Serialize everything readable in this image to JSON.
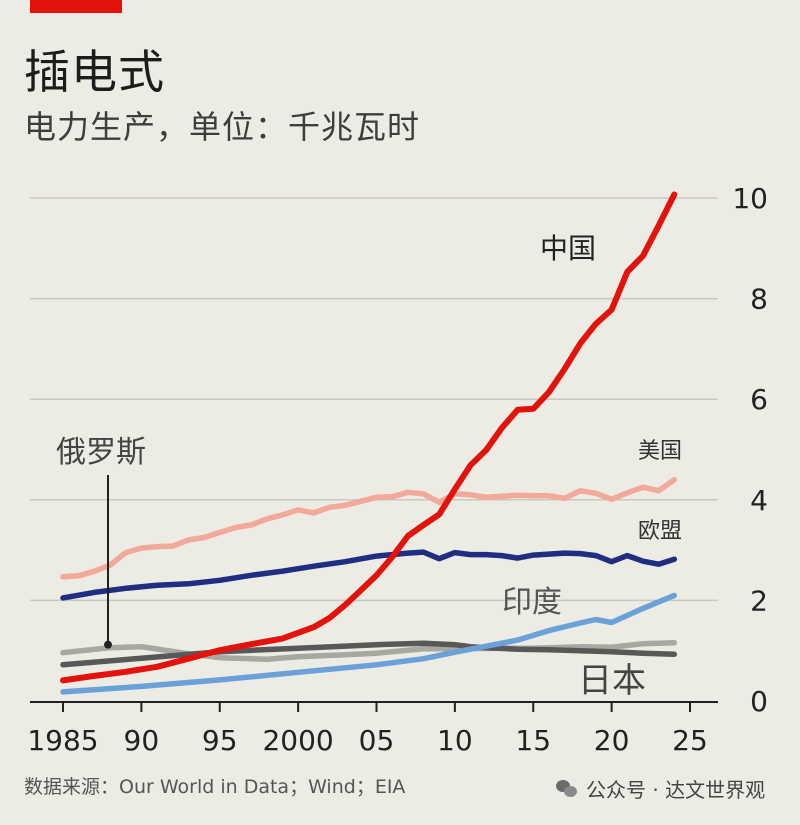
{
  "header": {
    "title": "插电式",
    "subtitle": "电力生产，单位：千兆瓦时"
  },
  "footer": {
    "source": "数据来源：Our World in Data；Wind；EIA",
    "watermark": "公众号 · 达文世界观"
  },
  "colors": {
    "accent": "#e3120b",
    "china": "#e3120b",
    "usa": "#f2a99a",
    "eu": "#1f2e82",
    "india": "#6aa2d8",
    "japan": "#585858",
    "russia": "#a8a8a2",
    "grid": "#c9c8c0"
  },
  "chart_data": {
    "type": "line",
    "title": "插电式",
    "subtitle": "电力生产，单位：千兆瓦时",
    "xlim": [
      1985,
      2025
    ],
    "ylim": [
      0,
      10
    ],
    "y_ticks": [
      0,
      2,
      4,
      6,
      8,
      10
    ],
    "y_tick_labels": [
      "0",
      "2",
      "4",
      "6",
      "8",
      "10"
    ],
    "x_ticks": [
      1985,
      1990,
      1995,
      2000,
      2005,
      2010,
      2015,
      2020,
      2025
    ],
    "x_tick_labels": [
      "1985",
      "90",
      "95",
      "2000",
      "05",
      "10",
      "15",
      "20",
      "25"
    ],
    "grid": true,
    "series": [
      {
        "name": "中国",
        "color": "#e3120b",
        "x": [
          1985,
          1987,
          1989,
          1991,
          1993,
          1995,
          1997,
          1999,
          2001,
          2002,
          2003,
          2004,
          2005,
          2006,
          2007,
          2008,
          2009,
          2010,
          2011,
          2012,
          2013,
          2014,
          2015,
          2016,
          2017,
          2018,
          2019,
          2020,
          2021,
          2022,
          2023,
          2024
        ],
        "y": [
          0.41,
          0.5,
          0.58,
          0.68,
          0.84,
          1.01,
          1.13,
          1.24,
          1.47,
          1.65,
          1.91,
          2.2,
          2.5,
          2.86,
          3.28,
          3.5,
          3.71,
          4.21,
          4.69,
          4.99,
          5.43,
          5.79,
          5.81,
          6.14,
          6.6,
          7.11,
          7.5,
          7.78,
          8.53,
          8.85,
          9.45,
          10.07
        ]
      },
      {
        "name": "美国",
        "color": "#f2a99a",
        "x": [
          1985,
          1986,
          1987,
          1988,
          1989,
          1990,
          1991,
          1992,
          1993,
          1994,
          1995,
          1996,
          1997,
          1998,
          1999,
          2000,
          2001,
          2002,
          2003,
          2004,
          2005,
          2006,
          2007,
          2008,
          2009,
          2010,
          2011,
          2012,
          2013,
          2014,
          2015,
          2016,
          2017,
          2018,
          2019,
          2020,
          2021,
          2022,
          2023,
          2024
        ],
        "y": [
          2.47,
          2.49,
          2.58,
          2.7,
          2.95,
          3.04,
          3.07,
          3.08,
          3.2,
          3.25,
          3.35,
          3.45,
          3.5,
          3.62,
          3.7,
          3.8,
          3.74,
          3.85,
          3.89,
          3.97,
          4.05,
          4.06,
          4.15,
          4.12,
          3.95,
          4.12,
          4.1,
          4.05,
          4.07,
          4.09,
          4.08,
          4.08,
          4.03,
          4.18,
          4.13,
          4.01,
          4.14,
          4.25,
          4.18,
          4.4
        ]
      },
      {
        "name": "欧盟",
        "color": "#1f2e82",
        "x": [
          1985,
          1987,
          1989,
          1991,
          1993,
          1995,
          1997,
          1999,
          2001,
          2003,
          2005,
          2007,
          2008,
          2009,
          2010,
          2011,
          2012,
          2013,
          2014,
          2015,
          2016,
          2017,
          2018,
          2019,
          2020,
          2021,
          2022,
          2023,
          2024
        ],
        "y": [
          2.05,
          2.16,
          2.24,
          2.3,
          2.33,
          2.4,
          2.5,
          2.58,
          2.68,
          2.77,
          2.88,
          2.94,
          2.96,
          2.83,
          2.95,
          2.91,
          2.91,
          2.89,
          2.84,
          2.9,
          2.92,
          2.94,
          2.93,
          2.89,
          2.77,
          2.89,
          2.78,
          2.72,
          2.82
        ]
      },
      {
        "name": "印度",
        "color": "#6aa2d8",
        "x": [
          1985,
          1990,
          1995,
          2000,
          2005,
          2008,
          2010,
          2012,
          2014,
          2016,
          2018,
          2019,
          2020,
          2022,
          2024
        ],
        "y": [
          0.18,
          0.29,
          0.42,
          0.57,
          0.72,
          0.84,
          0.97,
          1.09,
          1.21,
          1.4,
          1.55,
          1.62,
          1.56,
          1.84,
          2.1
        ]
      },
      {
        "name": "日本",
        "color": "#585858",
        "x": [
          1985,
          1990,
          1995,
          2000,
          2005,
          2008,
          2010,
          2011,
          2012,
          2014,
          2016,
          2018,
          2020,
          2022,
          2024
        ],
        "y": [
          0.72,
          0.85,
          0.98,
          1.05,
          1.12,
          1.15,
          1.12,
          1.08,
          1.06,
          1.03,
          1.02,
          1.0,
          0.98,
          0.95,
          0.93
        ]
      },
      {
        "name": "俄罗斯",
        "color": "#a8a8a2",
        "x": [
          1985,
          1988,
          1990,
          1993,
          1995,
          1998,
          2000,
          2003,
          2005,
          2008,
          2010,
          2013,
          2015,
          2018,
          2020,
          2022,
          2024
        ],
        "y": [
          0.96,
          1.06,
          1.08,
          0.94,
          0.86,
          0.83,
          0.88,
          0.92,
          0.95,
          1.04,
          1.04,
          1.05,
          1.05,
          1.08,
          1.07,
          1.14,
          1.16
        ]
      }
    ],
    "annotations": [
      "中国",
      "美国",
      "欧盟",
      "印度",
      "日本",
      "俄罗斯"
    ]
  }
}
